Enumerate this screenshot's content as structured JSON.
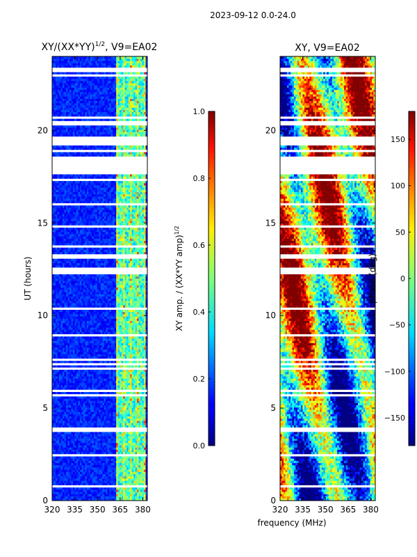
{
  "figure": {
    "suptitle": "2023-09-12 0.0-24.0",
    "xlabel": "frequency (MHz)"
  },
  "chart_data": [
    {
      "type": "heatmap",
      "title_main": "XY/(XX*YY)",
      "title_sup": "1/2",
      "title_rest": ", V9=EA02",
      "ylabel": "UT (hours)",
      "xlim": [
        320,
        383
      ],
      "ylim": [
        0,
        24
      ],
      "xticks": [
        "320",
        "335",
        "350",
        "365",
        "380"
      ],
      "xtick_values": [
        320,
        335,
        350,
        365,
        380
      ],
      "yticks": [
        "0",
        "5",
        "10",
        "15",
        "20"
      ],
      "ytick_values": [
        0,
        5,
        10,
        15,
        20
      ],
      "colorbar": {
        "label_main": "XY amp. / (XX*YY amp)",
        "label_sup": "1/2",
        "range": [
          0.0,
          1.0
        ],
        "ticks": [
          "0.0",
          "0.2",
          "0.4",
          "0.6",
          "0.8",
          "1.0"
        ],
        "tick_values": [
          0.0,
          0.2,
          0.4,
          0.6,
          0.8,
          1.0
        ]
      },
      "flagged_ut_ranges": [
        [
          17.7,
          18.5
        ],
        [
          13.1,
          13.3
        ],
        [
          12.4,
          12.6
        ],
        [
          20.3,
          20.5
        ]
      ],
      "rfi_band_mhz": [
        362,
        382
      ]
    },
    {
      "type": "heatmap",
      "title": "XY, V9=EA02",
      "xlim": [
        320,
        383
      ],
      "ylim": [
        0,
        24
      ],
      "xticks": [
        "320",
        "335",
        "350",
        "365",
        "380"
      ],
      "xtick_values": [
        320,
        335,
        350,
        365,
        380
      ],
      "yticks": [
        "0",
        "5",
        "10",
        "15",
        "20"
      ],
      "ytick_values": [
        0,
        5,
        10,
        15,
        20
      ],
      "colorbar": {
        "label": "phase (deg)",
        "range": [
          -180,
          180
        ],
        "ticks": [
          "−150",
          "−100",
          "−50",
          "0",
          "50",
          "100",
          "150"
        ],
        "tick_values": [
          -150,
          -100,
          -50,
          0,
          50,
          100,
          150
        ]
      },
      "flagged_ut_ranges": [
        [
          17.7,
          18.5
        ],
        [
          13.1,
          13.3
        ],
        [
          12.4,
          12.6
        ],
        [
          20.3,
          20.5
        ]
      ]
    }
  ]
}
